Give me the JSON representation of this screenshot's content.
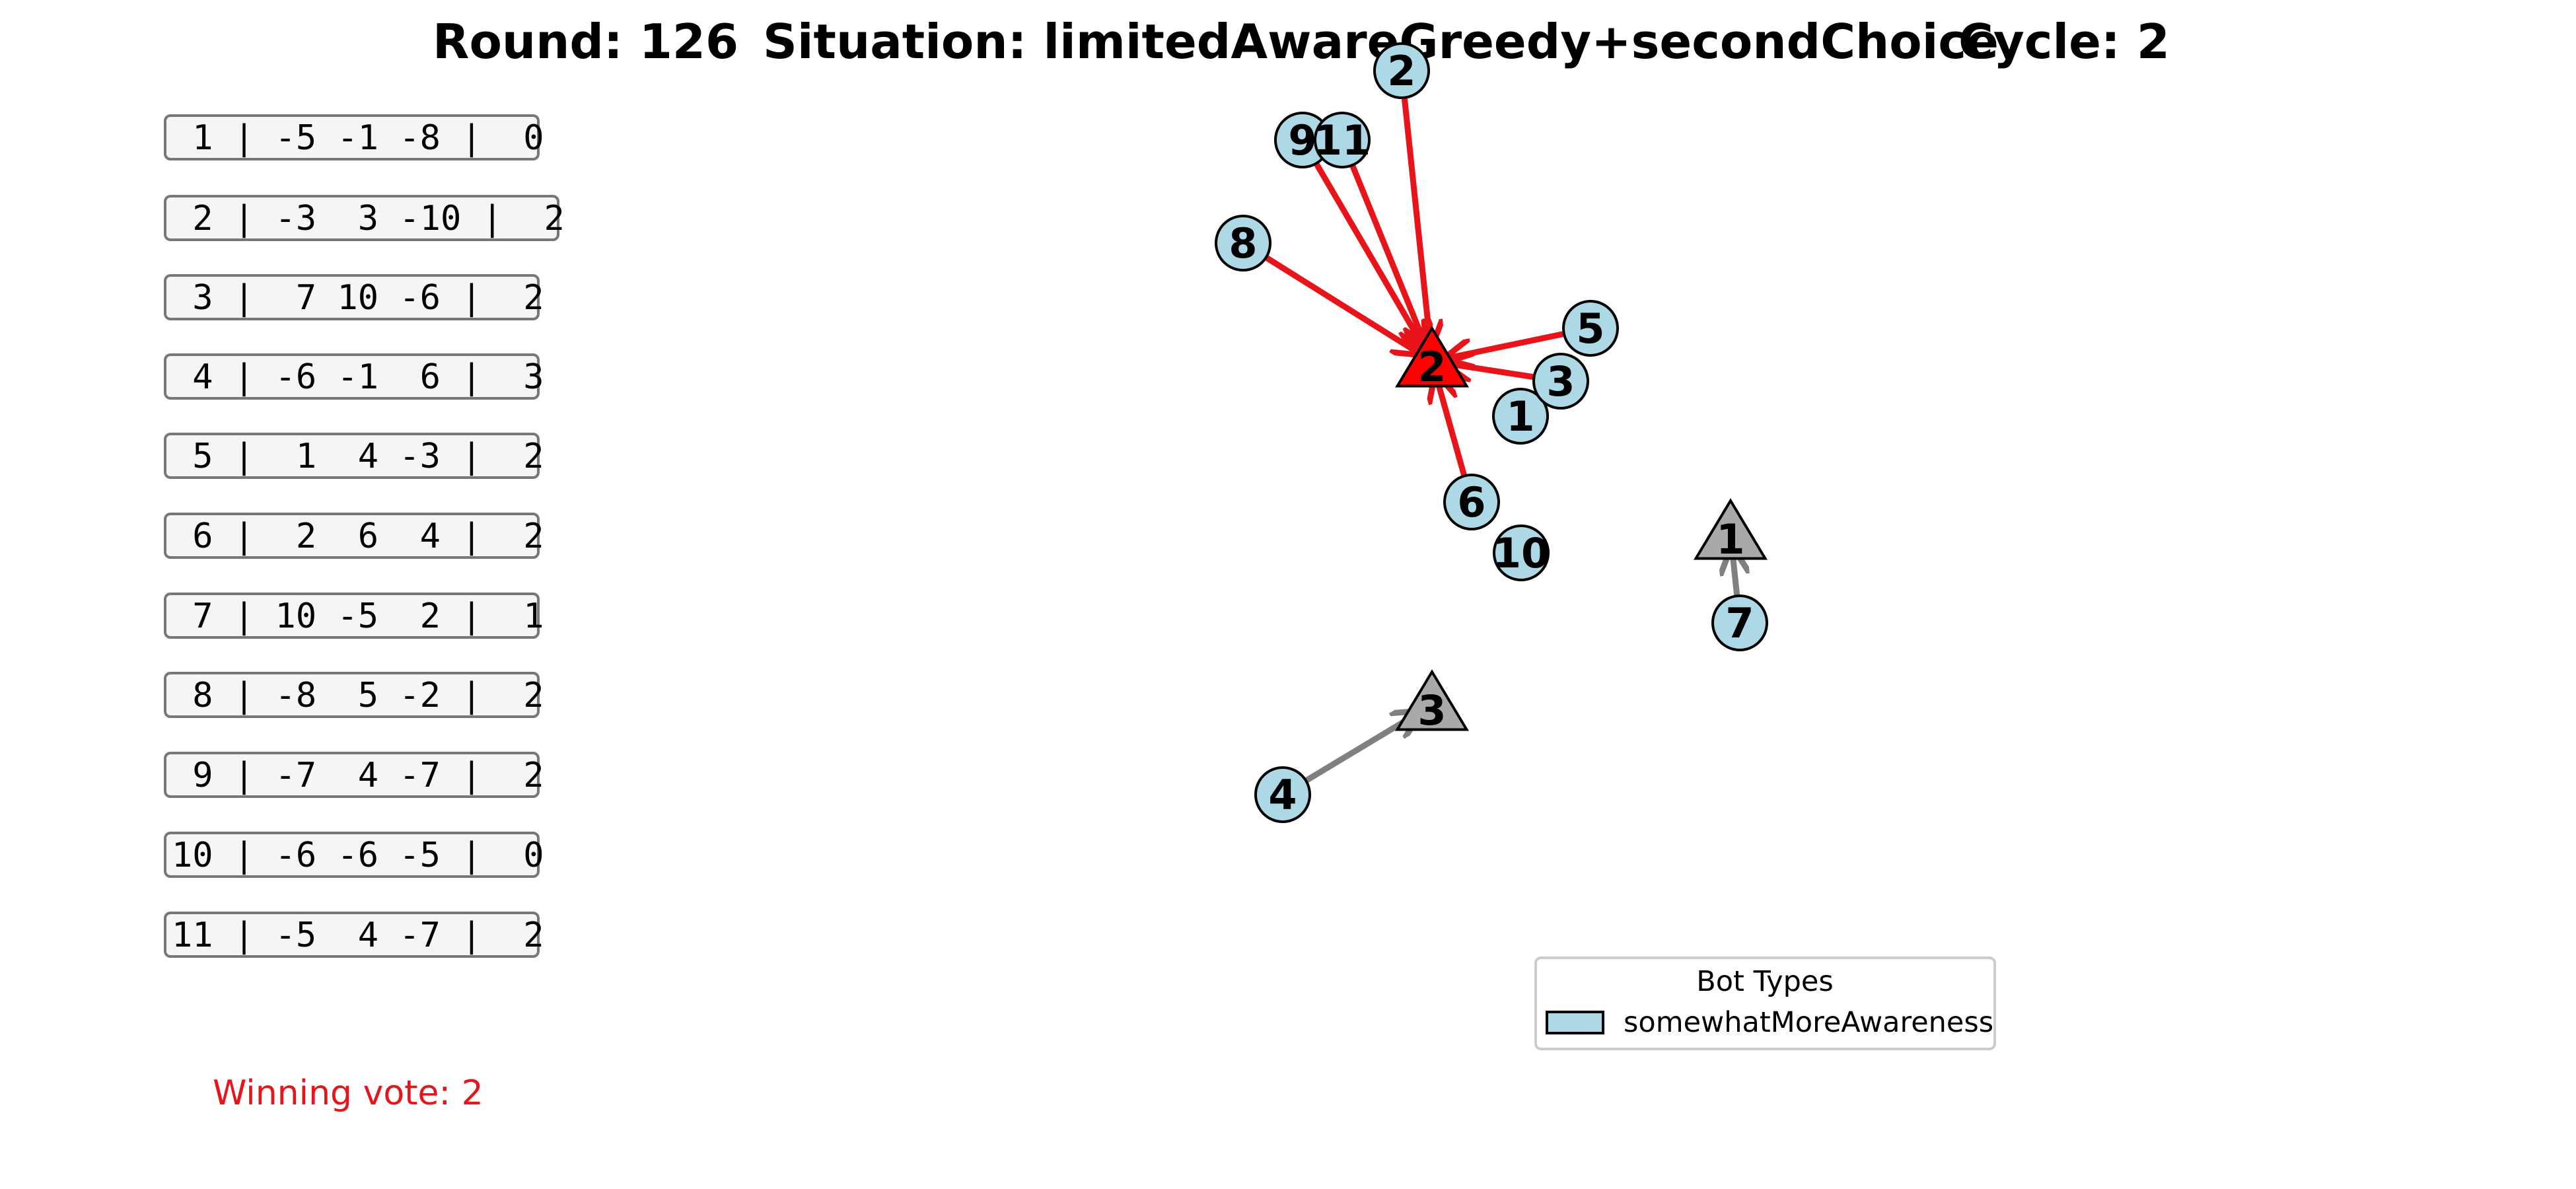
{
  "header": {
    "round": "Round: 126",
    "situation": "Situation: limitedAwareGreedy+secondChoice",
    "cycle": "Cycle: 2"
  },
  "info_rows": [
    {
      "text": " 1 | -5 -1 -8 |  0"
    },
    {
      "text": " 2 | -3  3 -10 |  2"
    },
    {
      "text": " 3 |  7 10 -6 |  2"
    },
    {
      "text": " 4 | -6 -1  6 |  3"
    },
    {
      "text": " 5 |  1  4 -3 |  2"
    },
    {
      "text": " 6 |  2  6  4 |  2"
    },
    {
      "text": " 7 | 10 -5  2 |  1"
    },
    {
      "text": " 8 | -8  5 -2 |  2"
    },
    {
      "text": " 9 | -7  4 -7 |  2"
    },
    {
      "text": "10 | -6 -6 -5 |  0"
    },
    {
      "text": "11 | -5  4 -7 |  2"
    }
  ],
  "winning_vote": "Winning vote: 2",
  "legend": {
    "title": "Bot Types",
    "entries": [
      {
        "label": "somewhatMoreAwareness",
        "color": "#add8e6"
      }
    ]
  },
  "colors": {
    "bot_fill": "#add8e6",
    "winning_option": "#ff0000",
    "other_option": "#a9a9a9",
    "winning_edge": "#e8141a",
    "other_edge": "#808080"
  },
  "options": [
    {
      "id": "1",
      "label": "1",
      "winning": false
    },
    {
      "id": "2",
      "label": "2",
      "winning": true
    },
    {
      "id": "3",
      "label": "3",
      "winning": false
    }
  ],
  "bots": [
    {
      "id": "1",
      "label": "1",
      "vote": null
    },
    {
      "id": "2",
      "label": "2",
      "vote": "2"
    },
    {
      "id": "3",
      "label": "3",
      "vote": "2"
    },
    {
      "id": "4",
      "label": "4",
      "vote": "3"
    },
    {
      "id": "5",
      "label": "5",
      "vote": "2"
    },
    {
      "id": "6",
      "label": "6",
      "vote": "2"
    },
    {
      "id": "7",
      "label": "7",
      "vote": "1"
    },
    {
      "id": "8",
      "label": "8",
      "vote": "2"
    },
    {
      "id": "9",
      "label": "9",
      "vote": "2"
    },
    {
      "id": "10",
      "label": "10",
      "vote": null
    },
    {
      "id": "11",
      "label": "11",
      "vote": "2"
    }
  ]
}
